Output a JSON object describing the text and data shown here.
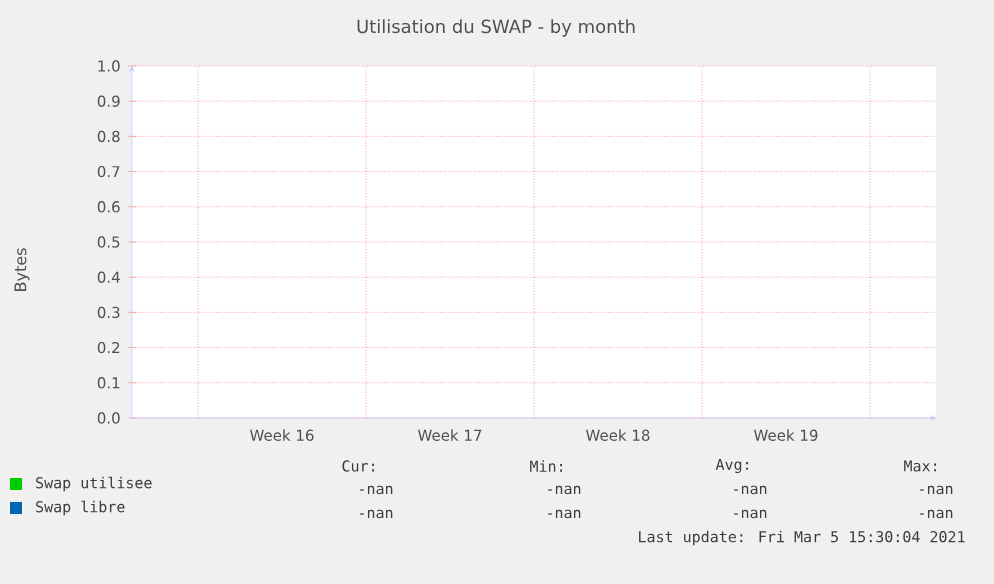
{
  "chart_data": {
    "type": "line",
    "title": "Utilisation du SWAP - by month",
    "ylabel": "Bytes",
    "categories": [
      "Week 16",
      "Week 17",
      "Week 18",
      "Week 19"
    ],
    "series": [
      {
        "name": "Swap utilisee",
        "color": "#00cc00",
        "values": [
          null,
          null,
          null,
          null
        ]
      },
      {
        "name": "Swap libre",
        "color": "#0066b3",
        "values": [
          null,
          null,
          null,
          null
        ]
      }
    ],
    "ylim": [
      0,
      1
    ],
    "yticks": [
      {
        "value": 0,
        "label": "0.0"
      },
      {
        "value": 0.1,
        "label": "0.1"
      },
      {
        "value": 0.2,
        "label": "0.2"
      },
      {
        "value": 0.3,
        "label": "0.3"
      },
      {
        "value": 0.4,
        "label": "0.4"
      },
      {
        "value": 0.5,
        "label": "0.5"
      },
      {
        "value": 0.6,
        "label": "0.6"
      },
      {
        "value": 0.7,
        "label": "0.7"
      },
      {
        "value": 0.8,
        "label": "0.8"
      },
      {
        "value": 0.9,
        "label": "0.9"
      },
      {
        "value": 1,
        "label": "1.0"
      }
    ],
    "grid": true,
    "legend": "bottom left",
    "annotations": [
      "Cur:",
      "Min:",
      "Avg:",
      "Max:",
      "-nan",
      "-nan",
      "-nan",
      "-nan",
      "-nan",
      "-nan",
      "-nan",
      "-nan",
      "Last update: Fri Mar  5 15:30:04 2021"
    ]
  }
}
